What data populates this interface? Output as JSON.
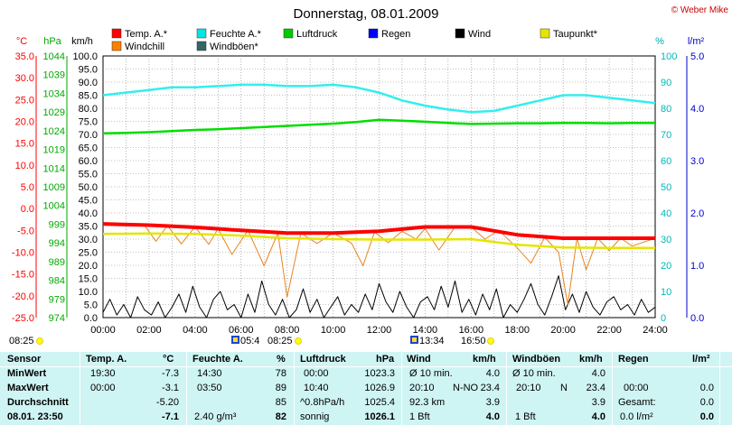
{
  "header": {
    "title": "Donnerstag, 08.01.2009",
    "copyright": "© Weber Mike"
  },
  "legend": [
    {
      "label": "Temp. A.*",
      "color": "#ff0000"
    },
    {
      "label": "Feuchte A.*",
      "color": "#00e5e5"
    },
    {
      "label": "Luftdruck",
      "color": "#00cc00"
    },
    {
      "label": "Regen",
      "color": "#0000ff"
    },
    {
      "label": "Wind",
      "color": "#000000"
    },
    {
      "label": "Taupunkt*",
      "color": "#e5e500"
    },
    {
      "label": "Windchill",
      "color": "#ff7f00"
    },
    {
      "label": "Windböen*",
      "color": "#336666"
    }
  ],
  "axes": {
    "temp_unit": "°C",
    "pressure_unit": "hPa",
    "wind_unit": "km/h",
    "humidity_unit": "%",
    "rain_unit": "l/m²",
    "temp_ticks": [
      "35.0",
      "30.0",
      "25.0",
      "20.0",
      "15.0",
      "10.0",
      "5.0",
      "0.0",
      "-5.0",
      "-10.0",
      "-15.0",
      "-20.0",
      "-25.0"
    ],
    "pressure_ticks": [
      "1044",
      "1039",
      "1034",
      "1029",
      "1024",
      "1019",
      "1014",
      "1009",
      "1004",
      "999",
      "994",
      "989",
      "984",
      "979",
      "974"
    ],
    "wind_ticks": [
      "100.0",
      "95.0",
      "90.0",
      "85.0",
      "80.0",
      "75.0",
      "70.0",
      "65.0",
      "60.0",
      "55.0",
      "50.0",
      "45.0",
      "40.0",
      "35.0",
      "30.0",
      "25.0",
      "20.0",
      "15.0",
      "10.0",
      "5.0",
      "0.0"
    ],
    "humidity_ticks": [
      "100",
      "90",
      "80",
      "70",
      "60",
      "50",
      "40",
      "30",
      "20",
      "10",
      "0"
    ],
    "rain_ticks": [
      "5.0",
      "4.0",
      "3.0",
      "2.0",
      "1.0",
      "0.0"
    ],
    "time_ticks": [
      "00:00",
      "02:00",
      "04:00",
      "06:00",
      "08:00",
      "10:00",
      "12:00",
      "14:00",
      "16:00",
      "18:00",
      "20:00",
      "22:00",
      "24:00"
    ]
  },
  "sun": {
    "sunrise_1": "08:25",
    "moonrise": "05:4",
    "sunrise_2": "08:25",
    "moonset": "13:34",
    "sunset": "16:50"
  },
  "chart_data": {
    "type": "line",
    "x_unit": "hours",
    "xlim": [
      0,
      24
    ],
    "series": [
      {
        "name": "Temp. A.*",
        "axis": "temp",
        "ylim": [
          -25,
          35
        ],
        "x": [
          0,
          2,
          4,
          6,
          8,
          10,
          12,
          14,
          16,
          18,
          20,
          22,
          24
        ],
        "values": [
          -3.5,
          -3.8,
          -4.3,
          -5.0,
          -5.6,
          -5.6,
          -5.2,
          -4.2,
          -4.2,
          -6.0,
          -6.8,
          -6.8,
          -6.8
        ]
      },
      {
        "name": "Taupunkt*",
        "axis": "temp",
        "ylim": [
          -25,
          35
        ],
        "x": [
          0,
          2,
          4,
          6,
          8,
          10,
          12,
          14,
          16,
          18,
          20,
          22,
          24
        ],
        "values": [
          -5.8,
          -5.7,
          -5.8,
          -6.2,
          -6.8,
          -7.0,
          -7.1,
          -7.1,
          -7.0,
          -8.3,
          -8.9,
          -9.0,
          -9.0
        ]
      },
      {
        "name": "Windchill",
        "axis": "temp",
        "ylim": [
          -25,
          35
        ],
        "x": [
          0,
          1.8,
          2.3,
          2.8,
          3.4,
          4,
          4.6,
          5,
          5.6,
          6.3,
          7,
          7.6,
          8,
          8.6,
          9.3,
          10,
          10.8,
          11.3,
          11.8,
          12.4,
          13,
          13.6,
          14,
          14.6,
          15.3,
          16,
          16.6,
          17.2,
          18,
          18.6,
          19.2,
          19.8,
          20.2,
          20.6,
          21,
          21.5,
          22,
          22.5,
          23,
          24
        ],
        "values": [
          -3.5,
          -3.8,
          -7.5,
          -3.9,
          -8.1,
          -4.2,
          -8.2,
          -4.6,
          -10.5,
          -5.0,
          -13.1,
          -5.6,
          -20.3,
          -5.6,
          -8.0,
          -5.6,
          -7.9,
          -13.1,
          -5.4,
          -7.8,
          -5.2,
          -7.0,
          -4.6,
          -9.5,
          -4.2,
          -4.2,
          -7.0,
          -5.0,
          -9.0,
          -12.5,
          -6.6,
          -10.0,
          -22.0,
          -6.8,
          -14.0,
          -6.8,
          -9.6,
          -6.8,
          -8.6,
          -6.8
        ]
      },
      {
        "name": "Feuchte A.*",
        "axis": "humidity",
        "ylim": [
          0,
          100
        ],
        "x": [
          0,
          1,
          2,
          3,
          4,
          5,
          6,
          7,
          8,
          9,
          10,
          11,
          12,
          13,
          14,
          15,
          16,
          17,
          18,
          19,
          20,
          21,
          22,
          23,
          24
        ],
        "values": [
          85,
          86,
          87,
          88,
          88,
          88.5,
          89,
          89,
          88.5,
          88.5,
          89,
          88,
          86,
          83,
          81,
          79.5,
          78.5,
          79,
          81,
          83,
          85,
          85,
          84,
          83,
          82
        ]
      },
      {
        "name": "Luftdruck",
        "axis": "pressure",
        "ylim": [
          974,
          1044
        ],
        "x": [
          0,
          1,
          2,
          3,
          4,
          5,
          6,
          7,
          8,
          9,
          10,
          11,
          12,
          13,
          14,
          15,
          16,
          17,
          18,
          19,
          20,
          21,
          22,
          23,
          24
        ],
        "values": [
          1023.3,
          1023.4,
          1023.6,
          1023.9,
          1024.2,
          1024.4,
          1024.7,
          1025.0,
          1025.3,
          1025.6,
          1025.9,
          1026.3,
          1026.9,
          1026.7,
          1026.4,
          1026.1,
          1025.8,
          1025.9,
          1026.0,
          1026.0,
          1026.1,
          1026.1,
          1026.0,
          1026.1,
          1026.1
        ]
      },
      {
        "name": "Wind",
        "axis": "wind",
        "ylim": [
          0,
          100
        ],
        "x": [
          0,
          0.3,
          0.6,
          0.9,
          1.2,
          1.5,
          1.8,
          2.1,
          2.4,
          2.7,
          3.0,
          3.3,
          3.6,
          3.9,
          4.2,
          4.5,
          4.8,
          5.1,
          5.4,
          5.7,
          6.0,
          6.3,
          6.6,
          6.9,
          7.2,
          7.5,
          7.8,
          8.1,
          8.4,
          8.7,
          9.0,
          9.3,
          9.6,
          9.9,
          10.2,
          10.5,
          10.8,
          11.1,
          11.4,
          11.7,
          12.0,
          12.3,
          12.6,
          12.9,
          13.2,
          13.5,
          13.8,
          14.1,
          14.4,
          14.7,
          15.0,
          15.3,
          15.6,
          15.9,
          16.2,
          16.5,
          16.8,
          17.1,
          17.4,
          17.7,
          18.0,
          18.3,
          18.6,
          18.9,
          19.2,
          19.5,
          19.8,
          20.1,
          20.4,
          20.7,
          21.0,
          21.3,
          21.6,
          21.9,
          22.2,
          22.5,
          22.8,
          23.1,
          23.4,
          23.7,
          24.0
        ],
        "values": [
          2,
          7,
          1,
          5,
          0,
          8,
          3,
          1,
          6,
          0,
          4,
          9,
          2,
          12,
          4,
          0,
          7,
          10,
          3,
          5,
          0,
          9,
          2,
          14,
          5,
          1,
          7,
          0,
          3,
          11,
          2,
          7,
          0,
          4,
          8,
          1,
          5,
          2,
          9,
          3,
          13,
          6,
          2,
          10,
          4,
          0,
          6,
          8,
          3,
          12,
          4,
          14,
          2,
          7,
          1,
          9,
          3,
          11,
          0,
          5,
          2,
          7,
          13,
          5,
          1,
          8,
          16,
          3,
          9,
          2,
          10,
          4,
          1,
          6,
          8,
          3,
          5,
          1,
          7,
          2,
          4
        ]
      },
      {
        "name": "Regen",
        "axis": "rain",
        "ylim": [
          0,
          5
        ],
        "x": [
          0,
          24
        ],
        "values": [
          0.0,
          0.0
        ]
      }
    ]
  },
  "stats": {
    "header": {
      "sensor": "Sensor",
      "temp": "Temp. A.",
      "temp_unit": "°C",
      "hum": "Feuchte A.",
      "hum_unit": "%",
      "press": "Luftdruck",
      "press_unit": "hPa",
      "wind": "Wind",
      "wind_unit": "km/h",
      "gust": "Windböen",
      "gust_unit": "km/h",
      "rain": "Regen",
      "rain_unit": "l/m²"
    },
    "min": {
      "label": "MinWert",
      "temp_time": "19:30",
      "temp": "-7.3",
      "hum_time": "14:30",
      "hum": "78",
      "press_time": "00:00",
      "press": "1023.3",
      "wind_label": "Ø 10 min.",
      "wind": "4.0",
      "gust_label": "Ø 10 min.",
      "gust": "4.0"
    },
    "max": {
      "label": "MaxWert",
      "temp_time": "00:00",
      "temp": "-3.1",
      "hum_time": "03:50",
      "hum": "89",
      "press_time": "10:40",
      "press": "1026.9",
      "wind_time": "20:10",
      "wind_dir": "N-NO",
      "wind": "23.4",
      "gust_time": "20:10",
      "gust_dir": "N",
      "gust": "23.4",
      "rain_time": "00:00",
      "rain": "0.0"
    },
    "avg": {
      "label": "Durchschnitt",
      "temp": "-5.20",
      "hum": "85",
      "press_trend": "^0.8hPa/h",
      "press": "1025.4",
      "wind_dist": "92.3 km",
      "wind": "3.9",
      "gust": "3.9",
      "rain_label": "Gesamt:",
      "rain": "0.0"
    },
    "current": {
      "label": "08.01. 23:50",
      "temp": "-7.1",
      "hum_abs": "2.40 g/m³",
      "hum": "82",
      "press_state": "sonnig",
      "press": "1026.1",
      "wind_bft": "1 Bft",
      "wind": "4.0",
      "gust_bft": "1 Bft",
      "gust": "4.0",
      "rain_rate": "0.0 l/m²",
      "rain": "0.0"
    }
  }
}
